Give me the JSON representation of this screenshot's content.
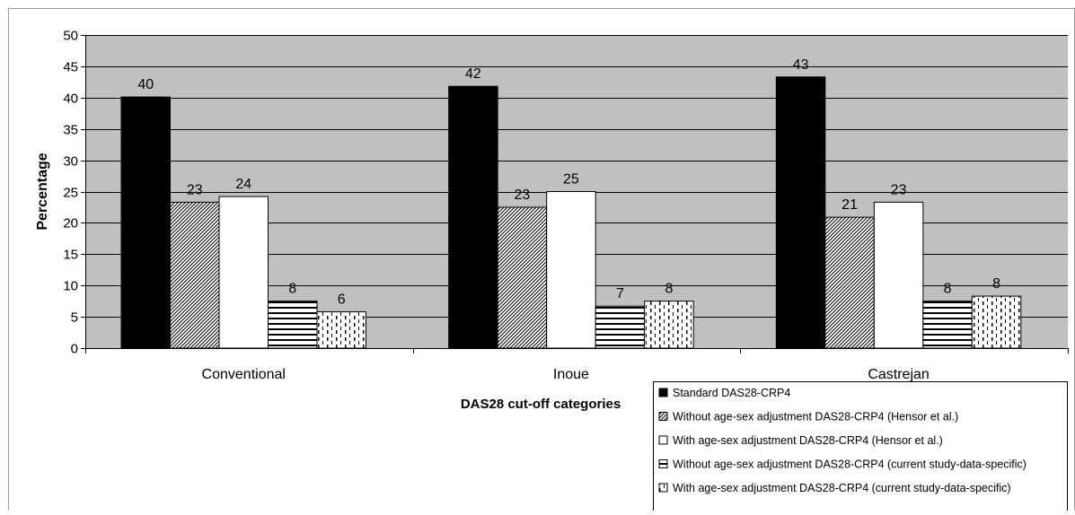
{
  "chart_data": {
    "type": "bar",
    "title": "",
    "xlabel": "DAS28 cut-off categories",
    "ylabel": "Percentage",
    "ylim": [
      0,
      50
    ],
    "yticks": [
      0,
      5,
      10,
      15,
      20,
      25,
      30,
      35,
      40,
      45,
      50
    ],
    "grid": true,
    "plot_background": "#c0c0c0",
    "legend_position": "bottom-right",
    "categories": [
      "Conventional",
      "Inoue",
      "Castrejan"
    ],
    "series": [
      {
        "name": "Standard DAS28-CRP4",
        "pattern": "solid-black",
        "values": [
          40.1,
          41.8,
          43.3
        ],
        "labels": [
          "40",
          "42",
          "43"
        ]
      },
      {
        "name": "Without age-sex adjustment DAS28-CRP4 (Hensor et al.)",
        "pattern": "diagonal-hatch",
        "values": [
          23.3,
          22.5,
          20.9
        ],
        "labels": [
          "23",
          "23",
          "21"
        ]
      },
      {
        "name": "With age-sex adjustment DAS28-CRP4 (Hensor et al.)",
        "pattern": "white",
        "values": [
          24.2,
          25.0,
          23.3
        ],
        "labels": [
          "24",
          "25",
          "23"
        ]
      },
      {
        "name": "Without age-sex adjustment DAS28-CRP4 (current study-data-specific)",
        "pattern": "horizontal-lines",
        "values": [
          7.5,
          6.7,
          7.5
        ],
        "labels": [
          "8",
          "7",
          "8"
        ]
      },
      {
        "name": "With age-sex adjustment DAS28-CRP4 (current study-data-specific)",
        "pattern": "vertical-dashes",
        "values": [
          5.8,
          7.5,
          8.3
        ],
        "labels": [
          "6",
          "8",
          "8"
        ]
      }
    ]
  }
}
